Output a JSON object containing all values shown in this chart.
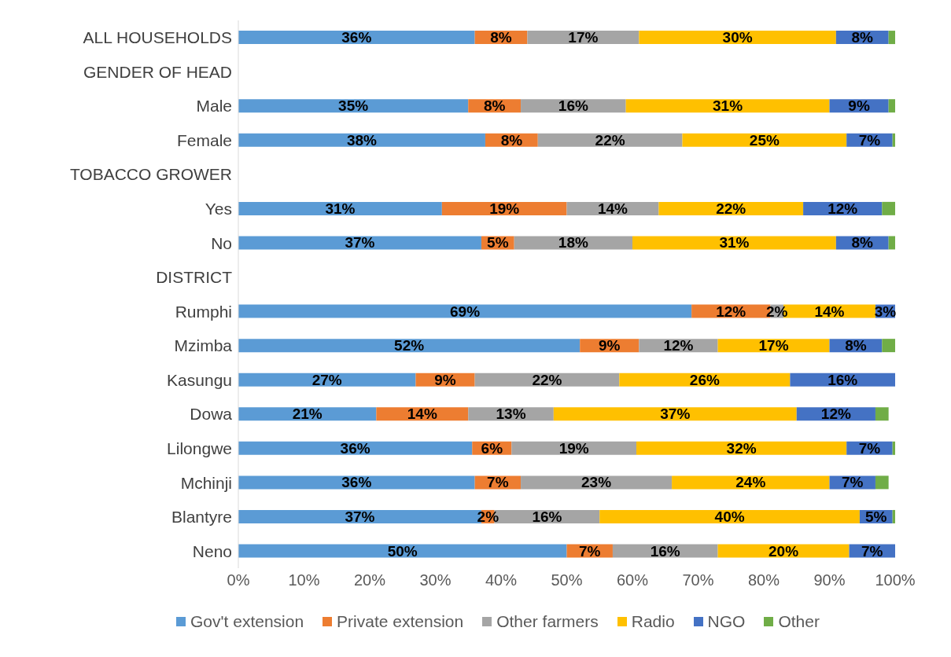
{
  "chart_data": {
    "type": "bar",
    "orientation": "horizontal",
    "stacked": true,
    "legend": "bottom",
    "categories": [
      "ALL HOUSEHOLDS",
      "GENDER OF HEAD",
      "Male",
      "Female",
      "TOBACCO GROWER",
      "Yes",
      "No",
      "DISTRICT",
      "Rumphi",
      "Mzimba",
      "Kasungu",
      "Dowa",
      "Lilongwe",
      "Mchinji",
      "Blantyre",
      "Neno"
    ],
    "xlim": [
      0,
      100
    ],
    "xticks": [
      {
        "value": 0,
        "label": "0%"
      },
      {
        "value": 10,
        "label": "10%"
      },
      {
        "value": 20,
        "label": "20%"
      },
      {
        "value": 30,
        "label": "30%"
      },
      {
        "value": 40,
        "label": "40%"
      },
      {
        "value": 50,
        "label": "50%"
      },
      {
        "value": 60,
        "label": "60%"
      },
      {
        "value": 70,
        "label": "70%"
      },
      {
        "value": 80,
        "label": "80%"
      },
      {
        "value": 90,
        "label": "90%"
      },
      {
        "value": 100,
        "label": "100%"
      }
    ],
    "series": [
      {
        "name": "Gov't extension",
        "color": "#5b9bd5",
        "values": [
          36,
          null,
          35,
          37.6,
          null,
          31,
          37,
          null,
          69,
          52,
          27,
          21,
          35.6,
          36,
          37,
          50
        ],
        "value_labels": [
          "36%",
          null,
          "35%",
          "38%",
          null,
          "31%",
          "37%",
          null,
          "69%",
          "52%",
          "27%",
          "21%",
          "36%",
          "36%",
          "37%",
          "50%"
        ]
      },
      {
        "name": "Private extension",
        "color": "#ed7d31",
        "values": [
          8,
          null,
          8,
          8,
          null,
          19,
          5,
          null,
          12,
          9,
          9,
          14,
          6,
          7,
          2,
          7
        ],
        "value_labels": [
          "8%",
          null,
          "8%",
          "8%",
          null,
          "19%",
          "5%",
          null,
          "12%",
          "9%",
          "9%",
          "14%",
          "6%",
          "7%",
          "2%",
          "7%"
        ]
      },
      {
        "name": "Other farmers",
        "color": "#a5a5a5",
        "values": [
          17,
          null,
          16,
          22,
          null,
          14,
          18,
          null,
          2,
          12,
          22,
          13,
          19,
          23,
          16,
          16
        ],
        "value_labels": [
          "17%",
          null,
          "16%",
          "22%",
          null,
          "14%",
          "18%",
          null,
          "2%",
          "12%",
          "22%",
          "13%",
          "19%",
          "23%",
          "16%",
          "16%"
        ]
      },
      {
        "name": "Radio",
        "color": "#ffc000",
        "values": [
          30,
          null,
          31,
          25,
          null,
          22,
          31,
          null,
          14,
          17,
          26,
          37,
          32,
          24,
          39.6,
          20
        ],
        "value_labels": [
          "30%",
          null,
          "31%",
          "25%",
          null,
          "22%",
          "31%",
          null,
          "14%",
          "17%",
          "26%",
          "37%",
          "32%",
          "24%",
          "40%",
          "20%"
        ]
      },
      {
        "name": "NGO",
        "color": "#4472c4",
        "values": [
          8,
          null,
          9,
          7,
          null,
          12,
          8,
          null,
          3,
          8,
          16,
          12,
          7,
          7,
          5,
          7
        ],
        "value_labels": [
          "8%",
          null,
          "9%",
          "7%",
          null,
          "12%",
          "8%",
          null,
          "3%",
          "8%",
          "16%",
          "12%",
          "7%",
          "7%",
          "5%",
          "7%"
        ]
      },
      {
        "name": "Other",
        "color": "#70ad47",
        "values": [
          1,
          null,
          1,
          0.4,
          null,
          2,
          1,
          null,
          null,
          2,
          null,
          2,
          0.4,
          2,
          0.4,
          null
        ]
      }
    ]
  }
}
